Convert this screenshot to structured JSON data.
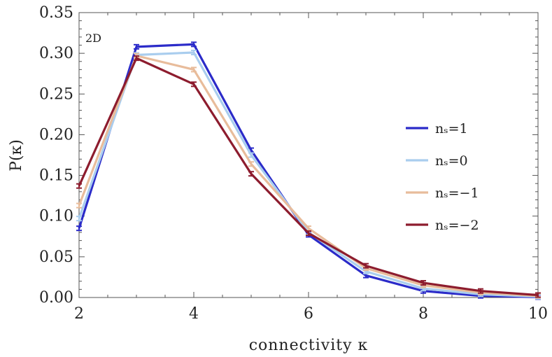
{
  "chart_data": {
    "type": "line",
    "annotation": "2D",
    "xlabel": "connectivity κ",
    "ylabel": "P(κ)",
    "xlim": [
      2,
      10
    ],
    "ylim": [
      0,
      0.35
    ],
    "xticks": [
      2,
      4,
      6,
      8,
      10
    ],
    "xtick_labels": [
      "2",
      "4",
      "6",
      "8",
      "10"
    ],
    "yticks": [
      0,
      0.05,
      0.1,
      0.15,
      0.2,
      0.25,
      0.3,
      0.35
    ],
    "ytick_labels": [
      "0.00",
      "0.05",
      "0.10",
      "0.15",
      "0.20",
      "0.25",
      "0.30",
      "0.35"
    ],
    "grid": false,
    "legend_position": "right",
    "x": [
      2,
      3,
      4,
      5,
      6,
      7,
      8,
      9,
      10
    ],
    "series": [
      {
        "name": "nₛ=1",
        "color": "#2b2bc9",
        "values": [
          0.085,
          0.308,
          0.311,
          0.181,
          0.077,
          0.027,
          0.008,
          0.002,
          0.0005
        ]
      },
      {
        "name": "nₛ=0",
        "color": "#a9cdee",
        "values": [
          0.097,
          0.298,
          0.301,
          0.175,
          0.08,
          0.032,
          0.011,
          0.004,
          0.001
        ]
      },
      {
        "name": "nₛ=−1",
        "color": "#e8bc9b",
        "values": [
          0.113,
          0.297,
          0.28,
          0.164,
          0.085,
          0.036,
          0.015,
          0.006,
          0.002
        ]
      },
      {
        "name": "nₛ=−2",
        "color": "#8d1c2e",
        "values": [
          0.137,
          0.294,
          0.262,
          0.152,
          0.079,
          0.039,
          0.018,
          0.008,
          0.003
        ]
      }
    ]
  }
}
